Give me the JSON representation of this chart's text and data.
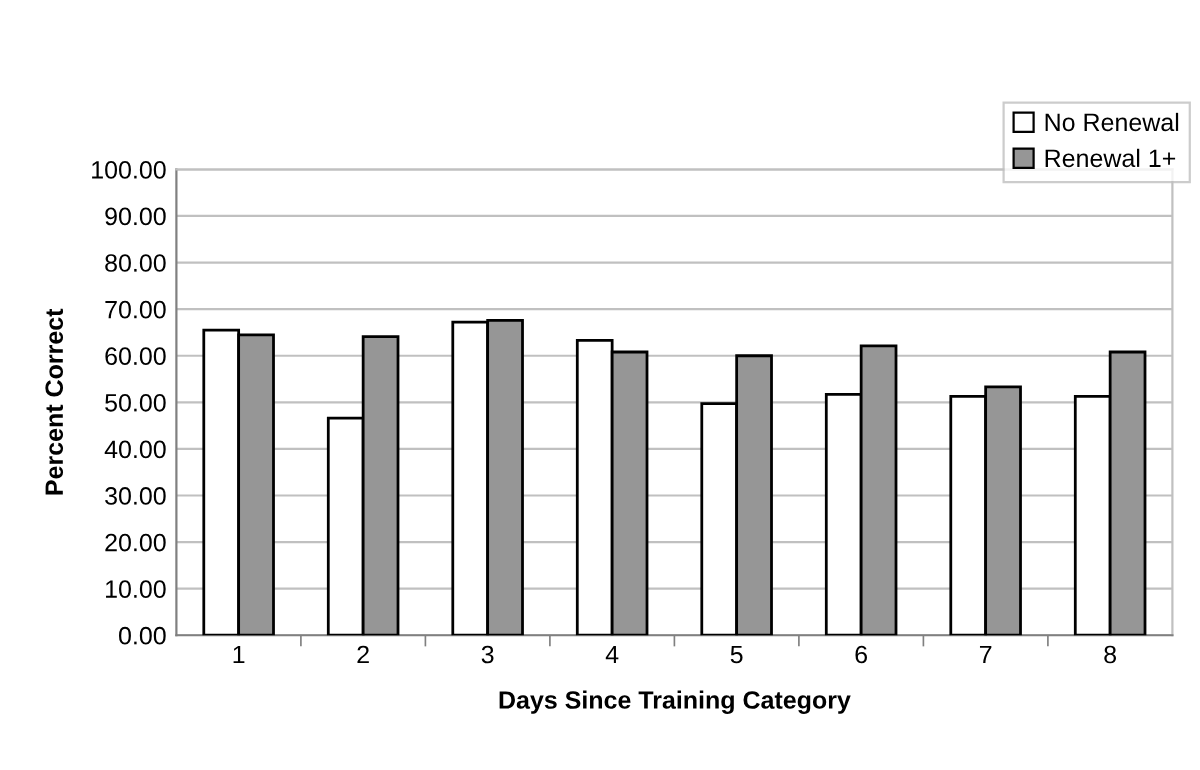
{
  "chart_data": {
    "type": "bar",
    "xlabel": "Days Since Training Category",
    "ylabel": "Percent Correct",
    "categories": [
      "1",
      "2",
      "3",
      "4",
      "5",
      "6",
      "7",
      "8"
    ],
    "series": [
      {
        "name": "No Renewal",
        "color": "#ffffff",
        "values": [
          65.5,
          46.6,
          67.2,
          63.3,
          49.7,
          51.7,
          51.3,
          51.3
        ]
      },
      {
        "name": "Renewal 1+",
        "color": "#969696",
        "values": [
          64.5,
          64.1,
          67.6,
          60.8,
          60.0,
          62.1,
          53.3,
          60.8
        ]
      }
    ],
    "ylim": [
      0,
      100
    ],
    "yticks": [
      {
        "value": 0,
        "label": "0.00"
      },
      {
        "value": 10,
        "label": "10.00"
      },
      {
        "value": 20,
        "label": "20.00"
      },
      {
        "value": 30,
        "label": "30.00"
      },
      {
        "value": 40,
        "label": "40.00"
      },
      {
        "value": 50,
        "label": "50.00"
      },
      {
        "value": 60,
        "label": "60.00"
      },
      {
        "value": 70,
        "label": "70.00"
      },
      {
        "value": 80,
        "label": "80.00"
      },
      {
        "value": 90,
        "label": "90.00"
      },
      {
        "value": 100,
        "label": "100.00"
      }
    ],
    "grid": "y",
    "legend": "top right"
  }
}
